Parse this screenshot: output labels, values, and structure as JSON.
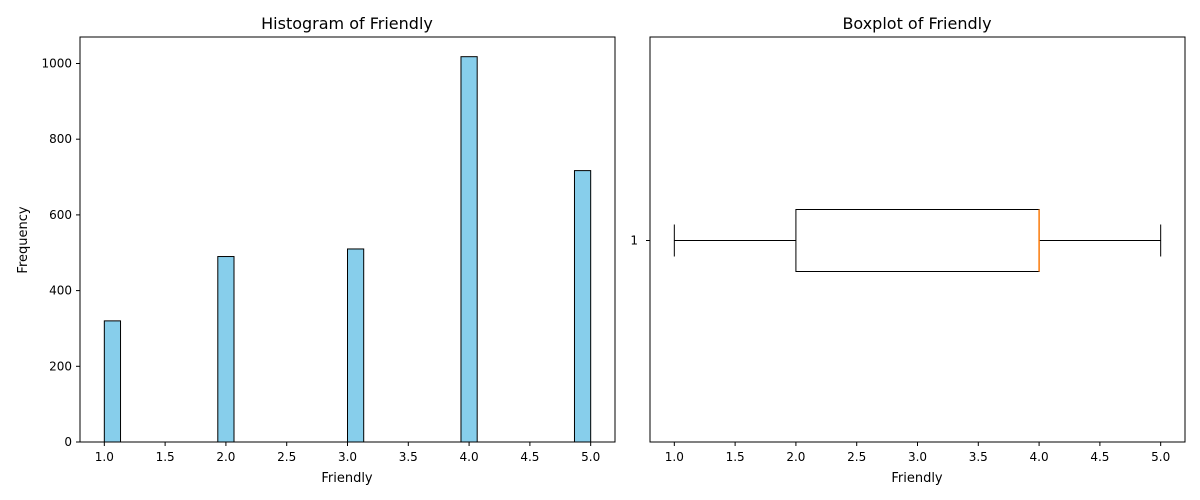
{
  "chart_data": [
    {
      "type": "bar",
      "title": "Histogram of Friendly",
      "xlabel": "Friendly",
      "ylabel": "Frequency",
      "xlim": [
        0.8,
        5.2
      ],
      "ylim": [
        0,
        1070
      ],
      "x_ticks": [
        "1.0",
        "1.5",
        "2.0",
        "2.5",
        "3.0",
        "3.5",
        "4.0",
        "4.5",
        "5.0"
      ],
      "y_ticks": [
        "0",
        "200",
        "400",
        "600",
        "800",
        "1000"
      ],
      "bar_width": 0.1333,
      "bars": [
        {
          "x_start": 1.0,
          "value": 320
        },
        {
          "x_start": 1.9333,
          "value": 490
        },
        {
          "x_start": 3.0,
          "value": 510
        },
        {
          "x_start": 3.9333,
          "value": 1018
        },
        {
          "x_start": 4.8667,
          "value": 717
        }
      ],
      "fill_color": "#87ceeb",
      "edge_color": "#000000",
      "grid": false
    },
    {
      "type": "boxplot",
      "title": "Boxplot of Friendly",
      "xlabel": "Friendly",
      "ylabel": "",
      "xlim": [
        0.8,
        5.2
      ],
      "x_ticks": [
        "1.0",
        "1.5",
        "2.0",
        "2.5",
        "3.0",
        "3.5",
        "4.0",
        "4.5",
        "5.0"
      ],
      "y_ticks": [
        "1"
      ],
      "orientation": "horizontal",
      "box": {
        "whisker_low": 1.0,
        "q1": 2.0,
        "median": 4.0,
        "q3": 4.0,
        "whisker_high": 5.0
      },
      "median_color": "#ff7f0e",
      "grid": false
    }
  ]
}
